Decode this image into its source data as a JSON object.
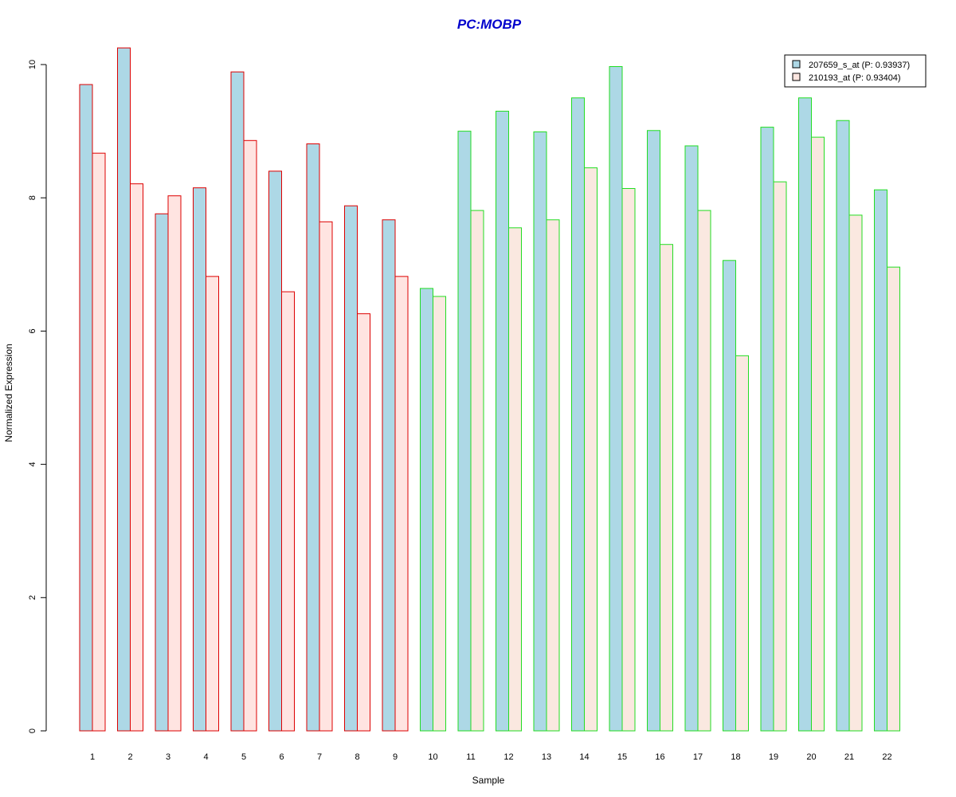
{
  "chart_data": {
    "type": "bar",
    "title": "PC:MOBP",
    "xlabel": "Sample",
    "ylabel": "Normalized Expression",
    "ylim": [
      0,
      10.5
    ],
    "yticks": [
      0,
      2,
      4,
      6,
      8,
      10
    ],
    "categories": [
      "1",
      "2",
      "3",
      "4",
      "5",
      "6",
      "7",
      "8",
      "9",
      "10",
      "11",
      "12",
      "13",
      "14",
      "15",
      "16",
      "17",
      "18",
      "19",
      "20",
      "21",
      "22"
    ],
    "series": [
      {
        "name": "207659_s_at (P: 0.93937)",
        "fill": "#add8e6",
        "values": [
          9.7,
          10.25,
          7.76,
          8.15,
          9.89,
          8.4,
          8.81,
          7.88,
          7.67,
          6.64,
          9.0,
          9.3,
          8.99,
          9.5,
          9.97,
          9.01,
          8.78,
          7.06,
          9.06,
          9.5,
          9.16,
          8.12
        ]
      },
      {
        "name": "210193_at (P: 0.93404)",
        "fill": "#fbe6e0",
        "values": [
          8.67,
          8.21,
          8.03,
          6.82,
          8.86,
          6.59,
          7.64,
          6.26,
          6.82,
          6.52,
          7.81,
          7.55,
          7.67,
          8.45,
          8.14,
          7.3,
          7.81,
          5.63,
          8.24,
          8.91,
          7.74,
          6.96
        ]
      }
    ],
    "group_borders": [
      "#dd0000",
      "#dd0000",
      "#dd0000",
      "#dd0000",
      "#dd0000",
      "#dd0000",
      "#dd0000",
      "#dd0000",
      "#dd0000",
      "#22dd22",
      "#22dd22",
      "#22dd22",
      "#22dd22",
      "#22dd22",
      "#22dd22",
      "#22dd22",
      "#22dd22",
      "#22dd22",
      "#22dd22",
      "#22dd22",
      "#22dd22",
      "#22dd22"
    ],
    "group_fills_series2": [
      "#ffe4e1",
      "#ffe4e1",
      "#ffe4e1",
      "#ffe4e1",
      "#ffe4e1",
      "#ffe4e1",
      "#ffe4e1",
      "#ffe4e1",
      "#ffe4e1",
      "#fae8e0",
      "#fae8e0",
      "#fae8e0",
      "#fae8e0",
      "#fae8e0",
      "#fae8e0",
      "#fae8e0",
      "#fae8e0",
      "#fae8e0",
      "#fae8e0",
      "#fae8e0",
      "#fae8e0",
      "#fae8e0"
    ],
    "legend_position": "top-right",
    "grid": false
  }
}
